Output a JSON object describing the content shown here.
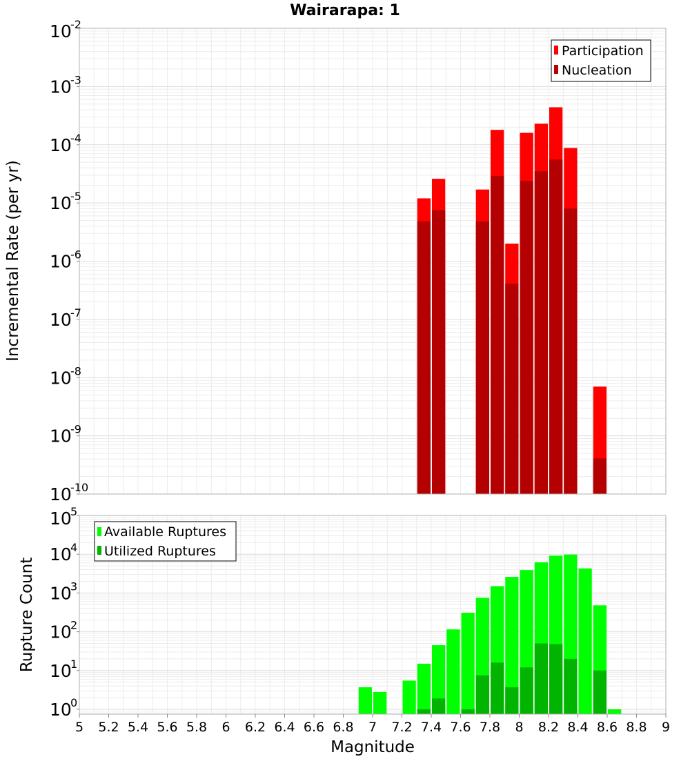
{
  "chart_data": [
    {
      "type": "bar",
      "title": "Wairarapa: 1",
      "xlabel": "Magnitude",
      "ylabel": "Incremental Rate (per yr)",
      "yscale": "log",
      "ylim": [
        1e-10,
        0.01
      ],
      "xlim": [
        5,
        9
      ],
      "grid": true,
      "legend_position": "top-right",
      "series": [
        {
          "name": "Participation",
          "color": "#ff0000",
          "x": [
            7.35,
            7.45,
            7.75,
            7.85,
            7.95,
            8.05,
            8.15,
            8.25,
            8.35,
            8.55
          ],
          "values": [
            1.2e-05,
            2.6e-05,
            1.7e-05,
            0.00018,
            2e-06,
            0.00016,
            0.00023,
            0.00044,
            8.8e-05,
            7e-09
          ]
        },
        {
          "name": "Nucleation",
          "color": "#b40000",
          "x": [
            7.35,
            7.45,
            7.75,
            7.85,
            7.95,
            8.05,
            8.15,
            8.25,
            8.35,
            8.55
          ],
          "values": [
            4.8e-06,
            7.5e-06,
            4.8e-06,
            2.9e-05,
            4.1e-07,
            2.4e-05,
            3.5e-05,
            5.6e-05,
            8e-06,
            4.1e-10
          ]
        }
      ]
    },
    {
      "type": "bar",
      "xlabel": "Magnitude",
      "ylabel": "Rupture Count",
      "yscale": "log",
      "ylim": [
        0.75,
        100000.0
      ],
      "xlim": [
        5,
        9
      ],
      "grid": true,
      "legend_position": "top-left",
      "series": [
        {
          "name": "Available Ruptures",
          "color": "#00ff00",
          "x": [
            6.95,
            7.05,
            7.25,
            7.35,
            7.45,
            7.55,
            7.65,
            7.75,
            7.85,
            7.95,
            8.05,
            8.15,
            8.25,
            8.35,
            8.45,
            8.55,
            8.65
          ],
          "values": [
            3.7,
            2.8,
            5.5,
            15,
            45,
            115,
            310,
            750,
            1500,
            2600,
            3900,
            6200,
            9200,
            9800,
            4300,
            480,
            1
          ]
        },
        {
          "name": "Utilized Ruptures",
          "color": "#00b400",
          "x": [
            7.35,
            7.45,
            7.65,
            7.75,
            7.85,
            7.95,
            8.05,
            8.15,
            8.25,
            8.35,
            8.55
          ],
          "values": [
            1,
            1.9,
            1,
            7.5,
            16,
            3.7,
            12,
            50,
            48,
            20,
            10
          ]
        }
      ]
    }
  ],
  "x_ticks": [
    "5",
    "5.2",
    "5.4",
    "5.6",
    "5.8",
    "6",
    "6.2",
    "6.4",
    "6.6",
    "6.8",
    "7",
    "7.2",
    "7.4",
    "7.6",
    "7.8",
    "8",
    "8.2",
    "8.4",
    "8.6",
    "8.8",
    "9"
  ],
  "top_y_ticks": [
    {
      "base": "10",
      "exp": "-2"
    },
    {
      "base": "10",
      "exp": "-3"
    },
    {
      "base": "10",
      "exp": "-4"
    },
    {
      "base": "10",
      "exp": "-5"
    },
    {
      "base": "10",
      "exp": "-6"
    },
    {
      "base": "10",
      "exp": "-7"
    },
    {
      "base": "10",
      "exp": "-8"
    },
    {
      "base": "10",
      "exp": "-9"
    },
    {
      "base": "10",
      "exp": "-10"
    }
  ],
  "bottom_y_ticks": [
    {
      "base": "10",
      "exp": "5"
    },
    {
      "base": "10",
      "exp": "4"
    },
    {
      "base": "10",
      "exp": "3"
    },
    {
      "base": "10",
      "exp": "2"
    },
    {
      "base": "10",
      "exp": "1"
    },
    {
      "base": "10",
      "exp": "0"
    }
  ]
}
